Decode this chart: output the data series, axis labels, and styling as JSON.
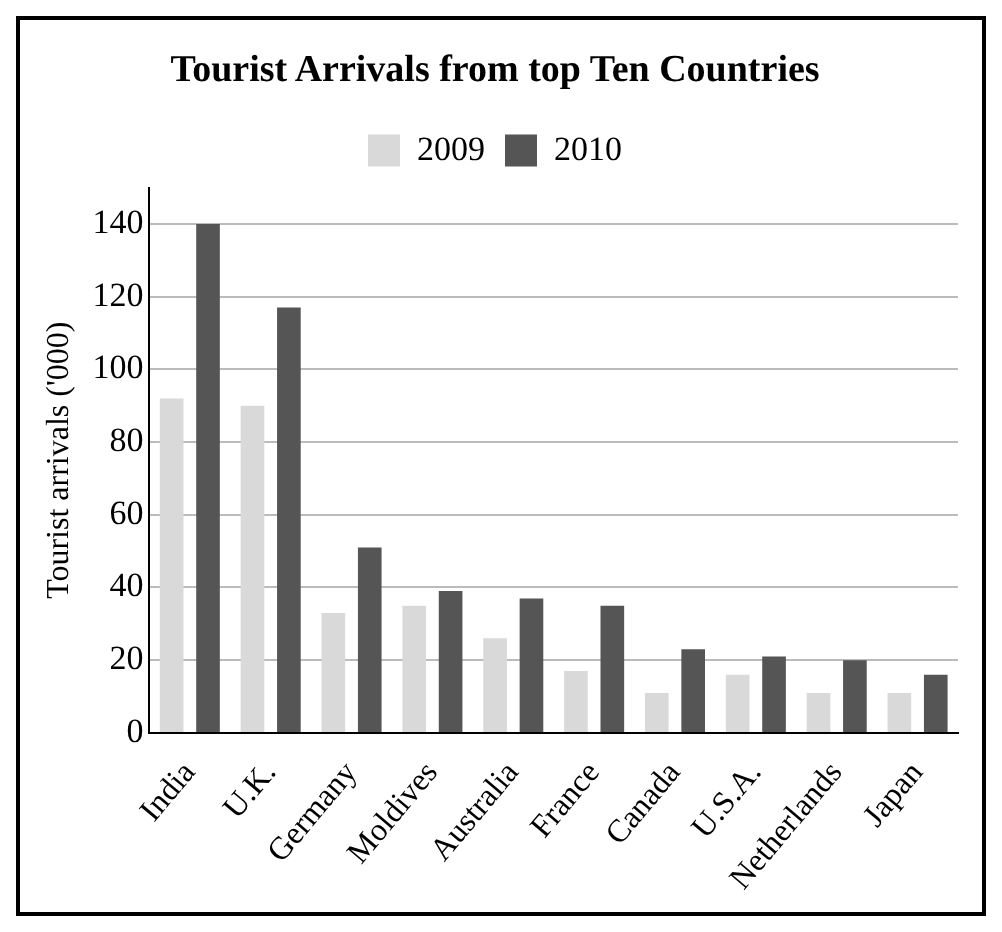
{
  "chart_data": {
    "type": "bar",
    "title": "Tourist Arrivals from top Ten Countries",
    "ylabel": "Tourist arrivals ('000)",
    "categories": [
      "India",
      "U.K.",
      "Germany",
      "Moldives",
      "Australia",
      "France",
      "Canada",
      "U.S.A.",
      "Netherlands",
      "Japan"
    ],
    "series": [
      {
        "name": "2009",
        "color": "#d9d9d9",
        "values": [
          92,
          90,
          33,
          35,
          26,
          17,
          11,
          16,
          11,
          11
        ]
      },
      {
        "name": "2010",
        "color": "#555555",
        "values": [
          140,
          117,
          51,
          39,
          37,
          35,
          23,
          21,
          20,
          16
        ]
      }
    ],
    "ylim": [
      0,
      150
    ],
    "yticks": [
      0,
      20,
      40,
      60,
      80,
      100,
      120,
      140
    ],
    "grid": "y",
    "legend": "top"
  }
}
